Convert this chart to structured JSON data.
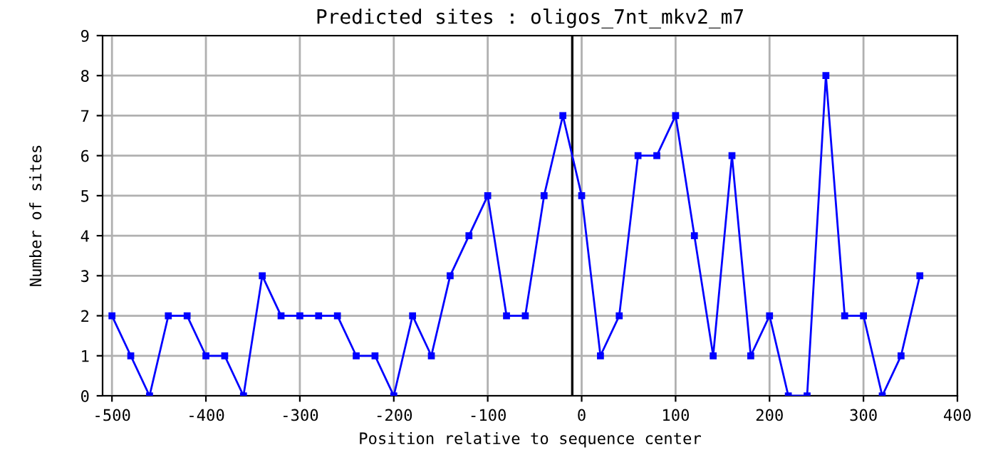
{
  "chart_data": {
    "type": "line",
    "title": "Predicted sites : oligos_7nt_mkv2_m7",
    "xlabel": "Position relative to sequence center",
    "ylabel": "Number of sites",
    "x": [
      -500,
      -480,
      -460,
      -440,
      -420,
      -400,
      -380,
      -360,
      -340,
      -320,
      -300,
      -280,
      -260,
      -240,
      -220,
      -200,
      -180,
      -160,
      -140,
      -120,
      -100,
      -80,
      -60,
      -40,
      -20,
      0,
      20,
      40,
      60,
      80,
      100,
      120,
      140,
      160,
      180,
      200,
      220,
      240,
      260,
      280,
      300,
      320,
      340,
      360
    ],
    "series": [
      {
        "color": "#0000ff",
        "values": [
          2,
          1,
          0,
          2,
          2,
          1,
          1,
          0,
          3,
          2,
          2,
          2,
          2,
          1,
          1,
          0,
          2,
          1,
          3,
          4,
          5,
          2,
          2,
          5,
          7,
          5,
          1,
          2,
          6,
          6,
          7,
          4,
          1,
          6,
          1,
          2,
          0,
          0,
          8,
          2,
          2,
          0,
          1,
          3
        ]
      }
    ],
    "xlim": [
      -510,
      400
    ],
    "xticks": [
      -500,
      -400,
      -300,
      -200,
      -100,
      0,
      100,
      200,
      300,
      400
    ],
    "ylim": [
      0,
      9
    ],
    "yticks": [
      0,
      1,
      2,
      3,
      4,
      5,
      6,
      7,
      8,
      9
    ],
    "ref_lines": [
      {
        "axis": "x",
        "value": -10,
        "color": "#000000"
      }
    ],
    "grid": true,
    "marker": "square",
    "line_style": "solid",
    "legend": false
  }
}
